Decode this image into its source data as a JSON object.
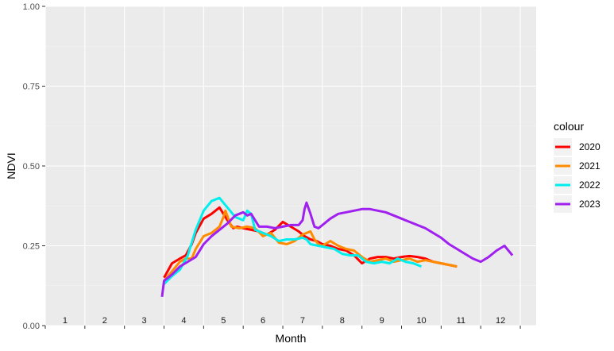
{
  "chart_data": {
    "type": "line",
    "xlabel": "Month",
    "ylabel": "NDVI",
    "ylim": [
      0,
      1
    ],
    "xlim": [
      0,
      12.4
    ],
    "yticks": [
      "0.00",
      "0.25",
      "0.50",
      "0.75",
      "1.00"
    ],
    "ytick_values": [
      0,
      0.25,
      0.5,
      0.75,
      1
    ],
    "month_labels": [
      "1",
      "2",
      "3",
      "4",
      "5",
      "6",
      "7",
      "8",
      "9",
      "10",
      "11",
      "12"
    ],
    "legend_title": "colour",
    "legend_position": "right",
    "grid": true,
    "series": [
      {
        "name": "2020",
        "color": "#ff0000",
        "x": [
          3.0,
          3.2,
          3.4,
          3.55,
          3.7,
          3.8,
          4.0,
          4.2,
          4.4,
          4.6,
          4.75,
          4.85,
          5.0,
          5.2,
          5.4,
          5.6,
          5.8,
          6.0,
          6.2,
          6.4,
          6.55,
          6.7,
          6.85,
          7.0,
          7.2,
          7.4,
          7.6,
          7.8,
          8.0,
          8.2,
          8.4,
          8.6,
          8.8,
          9.0,
          9.2,
          9.4,
          9.6,
          9.8,
          10.0,
          10.2,
          10.4
        ],
        "y": [
          0.15,
          0.195,
          0.21,
          0.22,
          0.255,
          0.29,
          0.335,
          0.35,
          0.37,
          0.33,
          0.305,
          0.31,
          0.305,
          0.3,
          0.295,
          0.285,
          0.3,
          0.325,
          0.31,
          0.295,
          0.28,
          0.27,
          0.265,
          0.255,
          0.25,
          0.24,
          0.235,
          0.22,
          0.195,
          0.21,
          0.215,
          0.215,
          0.21,
          0.215,
          0.218,
          0.215,
          0.21,
          0.2,
          0.195,
          0.19,
          0.185
        ]
      },
      {
        "name": "2021",
        "color": "#ff8c00",
        "x": [
          3.0,
          3.2,
          3.4,
          3.55,
          3.7,
          3.8,
          4.0,
          4.2,
          4.4,
          4.5,
          4.55,
          4.7,
          4.9,
          5.1,
          5.3,
          5.5,
          5.7,
          5.9,
          6.1,
          6.3,
          6.5,
          6.7,
          6.8,
          6.9,
          7.0,
          7.2,
          7.4,
          7.6,
          7.8,
          8.0,
          8.2,
          8.4,
          8.6,
          8.8,
          9.0,
          9.2,
          9.4,
          9.6,
          9.8,
          10.0,
          10.2,
          10.4
        ],
        "y": [
          0.14,
          0.17,
          0.2,
          0.21,
          0.21,
          0.24,
          0.28,
          0.29,
          0.31,
          0.34,
          0.36,
          0.31,
          0.305,
          0.31,
          0.305,
          0.28,
          0.29,
          0.26,
          0.255,
          0.265,
          0.285,
          0.295,
          0.27,
          0.255,
          0.25,
          0.265,
          0.25,
          0.24,
          0.235,
          0.215,
          0.2,
          0.205,
          0.21,
          0.2,
          0.205,
          0.21,
          0.2,
          0.205,
          0.2,
          0.195,
          0.19,
          0.185
        ]
      },
      {
        "name": "2022",
        "color": "#00eeee",
        "x": [
          3.0,
          3.2,
          3.4,
          3.6,
          3.8,
          4.0,
          4.2,
          4.4,
          4.6,
          4.8,
          5.0,
          5.1,
          5.2,
          5.3,
          5.5,
          5.7,
          5.9,
          6.1,
          6.3,
          6.5,
          6.6,
          6.7,
          6.9,
          7.1,
          7.3,
          7.5,
          7.7,
          7.9,
          8.1,
          8.3,
          8.5,
          8.7,
          8.9,
          9.1,
          9.3,
          9.5
        ],
        "y": [
          0.13,
          0.155,
          0.175,
          0.22,
          0.3,
          0.36,
          0.39,
          0.4,
          0.37,
          0.34,
          0.33,
          0.36,
          0.35,
          0.3,
          0.29,
          0.28,
          0.265,
          0.27,
          0.27,
          0.275,
          0.27,
          0.255,
          0.25,
          0.245,
          0.24,
          0.225,
          0.22,
          0.22,
          0.2,
          0.195,
          0.2,
          0.195,
          0.21,
          0.2,
          0.195,
          0.185
        ]
      },
      {
        "name": "2023",
        "color": "#a020f0",
        "x": [
          2.95,
          3.0,
          3.2,
          3.4,
          3.6,
          3.8,
          4.0,
          4.2,
          4.4,
          4.6,
          4.8,
          5.0,
          5.1,
          5.2,
          5.4,
          5.6,
          5.8,
          6.0,
          6.2,
          6.4,
          6.5,
          6.55,
          6.6,
          6.7,
          6.8,
          6.9,
          7.0,
          7.2,
          7.4,
          7.6,
          7.8,
          8.0,
          8.2,
          8.4,
          8.6,
          8.8,
          9.0,
          9.2,
          9.4,
          9.6,
          9.8,
          10.0,
          10.2,
          10.4,
          10.6,
          10.8,
          11.0,
          11.2,
          11.4,
          11.6,
          11.8
        ],
        "y": [
          0.09,
          0.14,
          0.16,
          0.185,
          0.2,
          0.215,
          0.255,
          0.28,
          0.3,
          0.32,
          0.345,
          0.355,
          0.345,
          0.35,
          0.31,
          0.31,
          0.305,
          0.31,
          0.315,
          0.315,
          0.33,
          0.365,
          0.385,
          0.35,
          0.31,
          0.305,
          0.315,
          0.335,
          0.35,
          0.355,
          0.36,
          0.365,
          0.365,
          0.36,
          0.355,
          0.345,
          0.335,
          0.325,
          0.315,
          0.305,
          0.29,
          0.275,
          0.255,
          0.24,
          0.225,
          0.21,
          0.2,
          0.215,
          0.235,
          0.25,
          0.22
        ]
      }
    ]
  }
}
